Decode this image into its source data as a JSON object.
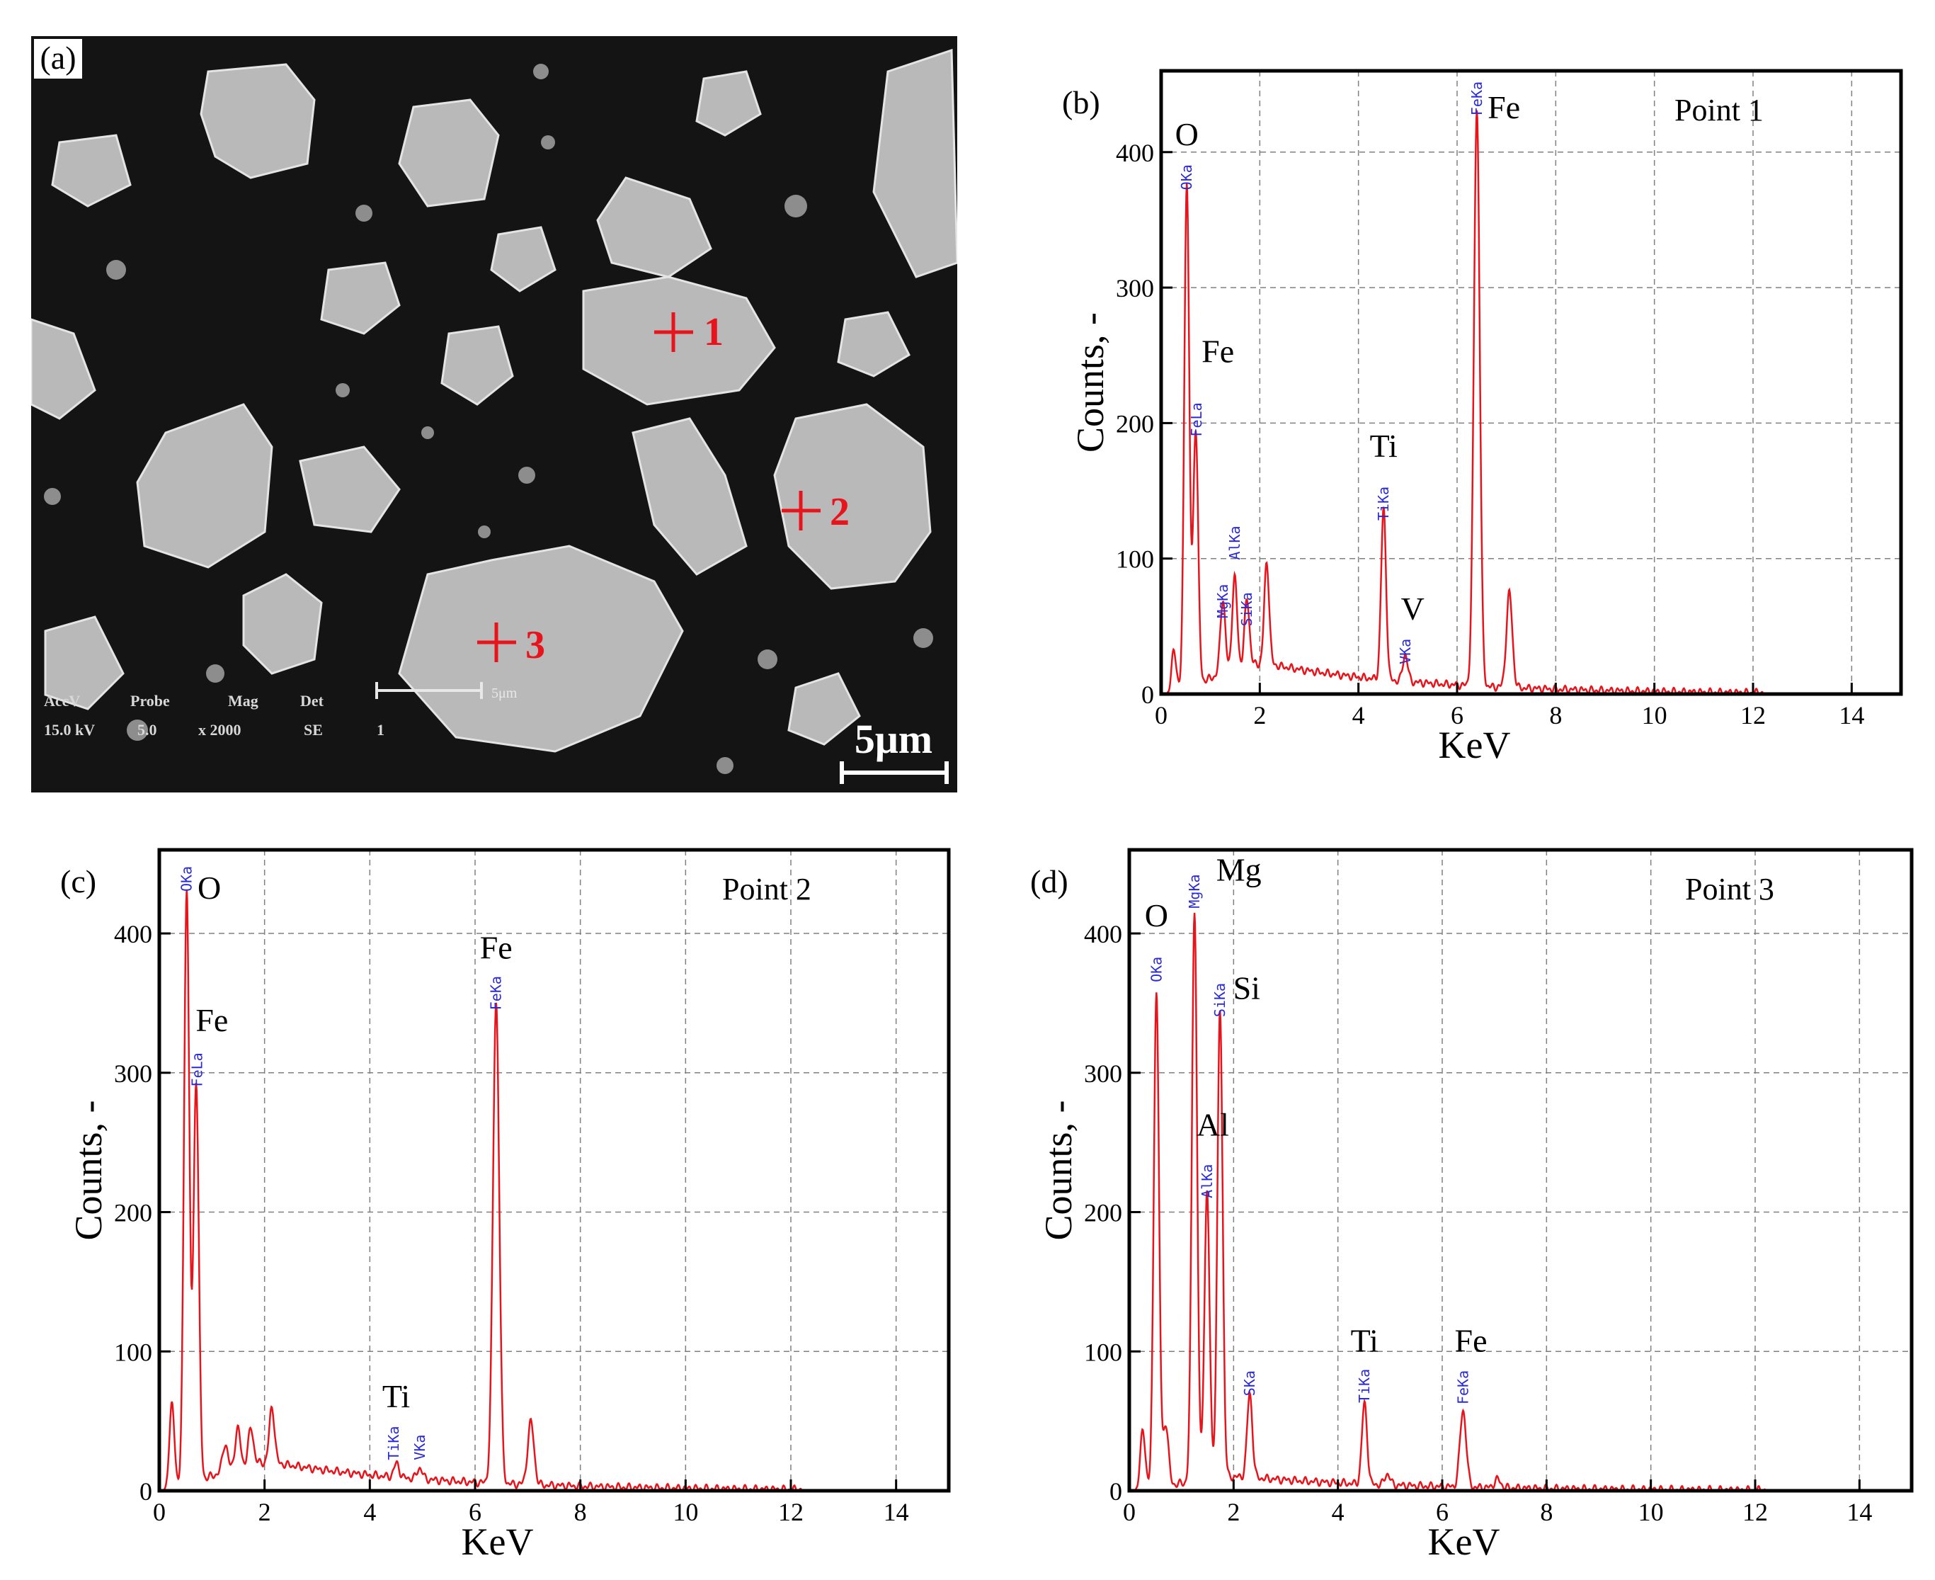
{
  "colors": {
    "spectrum": "#e8141c",
    "peak_label": "#2b2bd6",
    "marker": "#e8141c",
    "grid": "#808080",
    "frame": "#000000",
    "sem_background": "#141414",
    "sem_particle": "#b9b9b9"
  },
  "sem": {
    "panel_label": "(a)",
    "scale_bar_label": "5μm",
    "markers": [
      {
        "label": "1"
      },
      {
        "label": "2"
      },
      {
        "label": "3"
      }
    ],
    "info": {
      "headers": [
        "AccV",
        "Probe",
        "Mag",
        "Det"
      ],
      "values": [
        "15.0 kV",
        "5.0",
        "x 2000",
        "SE",
        "1"
      ],
      "small_scale_label": "5μm"
    }
  },
  "chart_data": [
    {
      "panel": "(b)",
      "type": "line",
      "title": "Point 1",
      "xlabel": "KeV",
      "ylabel": "Counts, -",
      "xlim": [
        0,
        15
      ],
      "ylim": [
        0,
        460
      ],
      "xticks": [
        0,
        2,
        4,
        6,
        8,
        10,
        12,
        14
      ],
      "yticks": [
        0,
        100,
        200,
        300,
        400
      ],
      "grid": true,
      "background": 22,
      "peaks": [
        {
          "x": 0.26,
          "y": 30,
          "w": 0.05
        },
        {
          "x": 0.52,
          "y": 373,
          "w": 0.05
        },
        {
          "x": 0.7,
          "y": 189,
          "w": 0.05
        },
        {
          "x": 1.25,
          "y": 55,
          "w": 0.05
        },
        {
          "x": 1.49,
          "y": 68,
          "w": 0.05
        },
        {
          "x": 1.74,
          "y": 48,
          "w": 0.05
        },
        {
          "x": 2.14,
          "y": 75,
          "w": 0.05
        },
        {
          "x": 4.51,
          "y": 126,
          "w": 0.05
        },
        {
          "x": 4.95,
          "y": 20,
          "w": 0.05
        },
        {
          "x": 6.4,
          "y": 425,
          "w": 0.06
        },
        {
          "x": 7.06,
          "y": 70,
          "w": 0.06
        }
      ],
      "element_labels": [
        {
          "text": "O",
          "x": 0.52,
          "y": 405
        },
        {
          "text": "Fe",
          "x": 1.15,
          "y": 245
        },
        {
          "text": "Ti",
          "x": 4.51,
          "y": 175
        },
        {
          "text": "V",
          "x": 5.1,
          "y": 55
        },
        {
          "text": "Fe",
          "x": 6.95,
          "y": 425
        }
      ],
      "line_labels": [
        {
          "text": "OKa",
          "x": 0.52,
          "y": 372
        },
        {
          "text": "FeLa",
          "x": 0.72,
          "y": 190
        },
        {
          "text": "MgKa",
          "x": 1.25,
          "y": 56
        },
        {
          "text": "AlKa",
          "x": 1.49,
          "y": 99
        },
        {
          "text": "SiKa",
          "x": 1.74,
          "y": 50
        },
        {
          "text": "TiKa",
          "x": 4.51,
          "y": 128
        },
        {
          "text": "VKa",
          "x": 4.95,
          "y": 22
        },
        {
          "text": "FeKa",
          "x": 6.4,
          "y": 427
        }
      ]
    },
    {
      "panel": "(c)",
      "type": "line",
      "title": "Point 2",
      "xlabel": "KeV",
      "ylabel": "Counts, -",
      "xlim": [
        0,
        15
      ],
      "ylim": [
        0,
        460
      ],
      "xticks": [
        0,
        2,
        4,
        6,
        8,
        10,
        12,
        14
      ],
      "yticks": [
        0,
        100,
        200,
        300,
        400
      ],
      "grid": true,
      "background": 20,
      "peaks": [
        {
          "x": 0.24,
          "y": 60,
          "w": 0.05
        },
        {
          "x": 0.52,
          "y": 428,
          "w": 0.05
        },
        {
          "x": 0.7,
          "y": 288,
          "w": 0.05
        },
        {
          "x": 1.25,
          "y": 20,
          "w": 0.05
        },
        {
          "x": 1.49,
          "y": 28,
          "w": 0.05
        },
        {
          "x": 1.74,
          "y": 25,
          "w": 0.05
        },
        {
          "x": 2.14,
          "y": 40,
          "w": 0.05
        },
        {
          "x": 4.51,
          "y": 10,
          "w": 0.05
        },
        {
          "x": 4.95,
          "y": 8,
          "w": 0.05
        },
        {
          "x": 6.4,
          "y": 345,
          "w": 0.06
        },
        {
          "x": 7.06,
          "y": 45,
          "w": 0.06
        }
      ],
      "element_labels": [
        {
          "text": "O",
          "x": 0.95,
          "y": 425
        },
        {
          "text": "Fe",
          "x": 1.0,
          "y": 330
        },
        {
          "text": "Ti",
          "x": 4.5,
          "y": 60
        },
        {
          "text": "Fe",
          "x": 6.4,
          "y": 382
        }
      ],
      "line_labels": [
        {
          "text": "OKa",
          "x": 0.52,
          "y": 430
        },
        {
          "text": "FeLa",
          "x": 0.72,
          "y": 290
        },
        {
          "text": "TiKa",
          "x": 4.45,
          "y": 22
        },
        {
          "text": "VKa",
          "x": 4.95,
          "y": 22
        },
        {
          "text": "FeKa",
          "x": 6.4,
          "y": 345
        }
      ]
    },
    {
      "panel": "(d)",
      "type": "line",
      "title": "Point 3",
      "xlabel": "KeV",
      "ylabel": "Counts, -",
      "xlim": [
        0,
        15
      ],
      "ylim": [
        0,
        460
      ],
      "xticks": [
        0,
        2,
        4,
        6,
        8,
        10,
        12,
        14
      ],
      "yticks": [
        0,
        100,
        200,
        300,
        400
      ],
      "grid": true,
      "background": 10,
      "peaks": [
        {
          "x": 0.26,
          "y": 42,
          "w": 0.05
        },
        {
          "x": 0.52,
          "y": 357,
          "w": 0.05
        },
        {
          "x": 0.7,
          "y": 45,
          "w": 0.05
        },
        {
          "x": 1.25,
          "y": 410,
          "w": 0.05
        },
        {
          "x": 1.49,
          "y": 205,
          "w": 0.05
        },
        {
          "x": 1.74,
          "y": 335,
          "w": 0.05
        },
        {
          "x": 2.31,
          "y": 60,
          "w": 0.05
        },
        {
          "x": 4.51,
          "y": 58,
          "w": 0.05
        },
        {
          "x": 4.95,
          "y": 8,
          "w": 0.05
        },
        {
          "x": 6.4,
          "y": 55,
          "w": 0.06
        },
        {
          "x": 7.06,
          "y": 6,
          "w": 0.06
        }
      ],
      "element_labels": [
        {
          "text": "O",
          "x": 0.52,
          "y": 405
        },
        {
          "text": "Mg",
          "x": 2.1,
          "y": 438
        },
        {
          "text": "Si",
          "x": 2.25,
          "y": 353
        },
        {
          "text": "Al",
          "x": 1.6,
          "y": 255
        },
        {
          "text": "Ti",
          "x": 4.51,
          "y": 100
        },
        {
          "text": "Fe",
          "x": 6.55,
          "y": 100
        }
      ],
      "line_labels": [
        {
          "text": "OKa",
          "x": 0.52,
          "y": 365
        },
        {
          "text": "MgKa",
          "x": 1.25,
          "y": 418
        },
        {
          "text": "SiKa",
          "x": 1.74,
          "y": 340
        },
        {
          "text": "AlKa",
          "x": 1.49,
          "y": 210
        },
        {
          "text": "SKa",
          "x": 2.31,
          "y": 68
        },
        {
          "text": "TiKa",
          "x": 4.51,
          "y": 63
        },
        {
          "text": "FeKa",
          "x": 6.4,
          "y": 62
        }
      ]
    }
  ]
}
